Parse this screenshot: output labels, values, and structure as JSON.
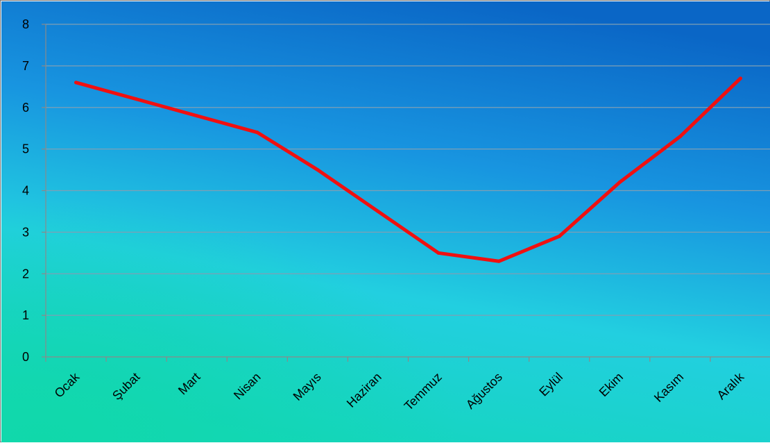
{
  "chart_data": {
    "type": "line",
    "title": "",
    "xlabel": "",
    "ylabel": "",
    "categories": [
      "Ocak",
      "Şubat",
      "Mart",
      "Nisan",
      "Mayıs",
      "Haziran",
      "Temmuz",
      "Ağustos",
      "Eylül",
      "Ekim",
      "Kasım",
      "Aralık"
    ],
    "series": [
      {
        "values": [
          6.6,
          6.2,
          5.8,
          5.4,
          4.5,
          3.5,
          2.5,
          2.3,
          2.9,
          4.2,
          5.3,
          6.7
        ]
      }
    ],
    "ylim": [
      0,
      8
    ],
    "yticks": [
      "0",
      "1",
      "2",
      "3",
      "4",
      "5",
      "6",
      "7",
      "8"
    ],
    "grid": true,
    "legend": "none",
    "colors": {
      "line": "#f01010",
      "grid": "#7f9fb4",
      "axis": "#8a8a8a",
      "background_top": "#0a68c8",
      "background_mid": "#1a9fe0",
      "background_bottom": "#17d4c0"
    }
  }
}
